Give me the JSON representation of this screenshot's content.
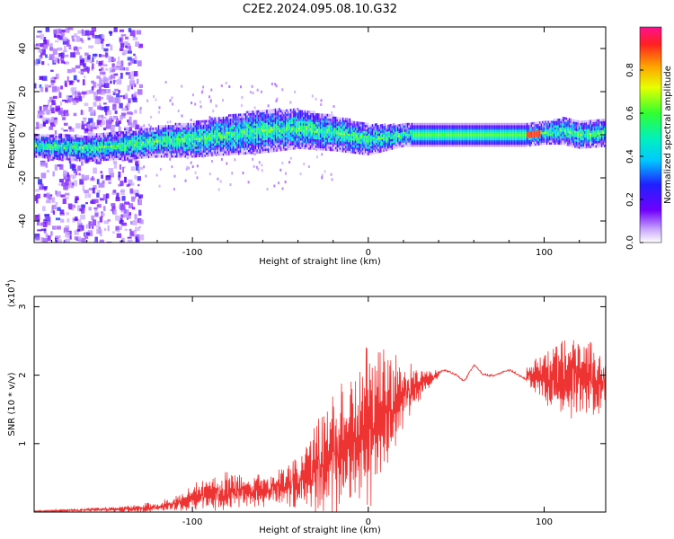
{
  "chart_data": [
    {
      "type": "heatmap",
      "title": "C2E2.2024.095.08.10.G32",
      "xlabel": "Height of straight line (km)",
      "ylabel": "Frequency (Hz)",
      "xlim": [
        -190,
        135
      ],
      "ylim": [
        -50,
        50
      ],
      "xticks": [
        -100,
        0,
        100
      ],
      "yticks": [
        -40,
        -20,
        0,
        20,
        40
      ],
      "colorbar": {
        "label": "Normalized spectral amplitude",
        "range": [
          0,
          1
        ],
        "ticks": [
          0.0,
          0.2,
          0.4,
          0.6,
          0.8
        ],
        "tick_labels": [
          "0.0",
          "0.2",
          "0.4",
          "0.6",
          "0.8"
        ]
      },
      "ridge": {
        "description": "frequency of peak spectral amplitude vs height",
        "x": [
          -190,
          -160,
          -140,
          -120,
          -100,
          -80,
          -60,
          -40,
          -20,
          0,
          10,
          20,
          30,
          50,
          70,
          90,
          100,
          110,
          120,
          135
        ],
        "center_freq": [
          -5,
          -6,
          -5,
          -3,
          -2,
          0,
          2,
          3,
          1,
          -2,
          -1,
          0,
          0,
          0,
          0,
          0,
          1,
          2,
          0,
          1
        ],
        "half_width": [
          2,
          3,
          3,
          4,
          5,
          6,
          7,
          6,
          5,
          4,
          3,
          2,
          2,
          2,
          2,
          2,
          2,
          3,
          3,
          3
        ]
      }
    },
    {
      "type": "line",
      "title": "",
      "xlabel": "Height of straight line (km)",
      "ylabel": "SNR (10 * v/v)",
      "y_scale_label": "(x10",
      "y_scale_exp": "4",
      "y_scale_close": ")",
      "xlim": [
        -190,
        135
      ],
      "ylim": [
        0,
        3.15
      ],
      "xticks": [
        -100,
        0,
        100
      ],
      "yticks": [
        1,
        2,
        3
      ],
      "color": "#ee3333",
      "series": [
        {
          "name": "SNR",
          "x": [
            -190,
            -170,
            -150,
            -130,
            -120,
            -110,
            -100,
            -90,
            -80,
            -70,
            -60,
            -50,
            -40,
            -30,
            -20,
            -10,
            0,
            10,
            20,
            30,
            40,
            50,
            55,
            60,
            65,
            70,
            80,
            90,
            100,
            110,
            120,
            130,
            135
          ],
          "mean": [
            0.01,
            0.02,
            0.04,
            0.05,
            0.08,
            0.12,
            0.2,
            0.25,
            0.3,
            0.32,
            0.3,
            0.35,
            0.45,
            0.6,
            0.8,
            1.0,
            1.3,
            1.5,
            1.7,
            1.9,
            2.0,
            2.05,
            1.95,
            2.1,
            2.0,
            2.05,
            2.02,
            2.0,
            2.0,
            1.95,
            2.0,
            1.9,
            1.9
          ],
          "spread": [
            0.01,
            0.02,
            0.03,
            0.05,
            0.07,
            0.1,
            0.18,
            0.2,
            0.25,
            0.2,
            0.2,
            0.25,
            0.4,
            0.6,
            0.9,
            1.0,
            1.0,
            0.8,
            0.4,
            0.2,
            0.05,
            0.03,
            0.03,
            0.03,
            0.03,
            0.03,
            0.05,
            0.1,
            0.35,
            0.5,
            0.5,
            0.5,
            0.5
          ]
        }
      ]
    }
  ]
}
